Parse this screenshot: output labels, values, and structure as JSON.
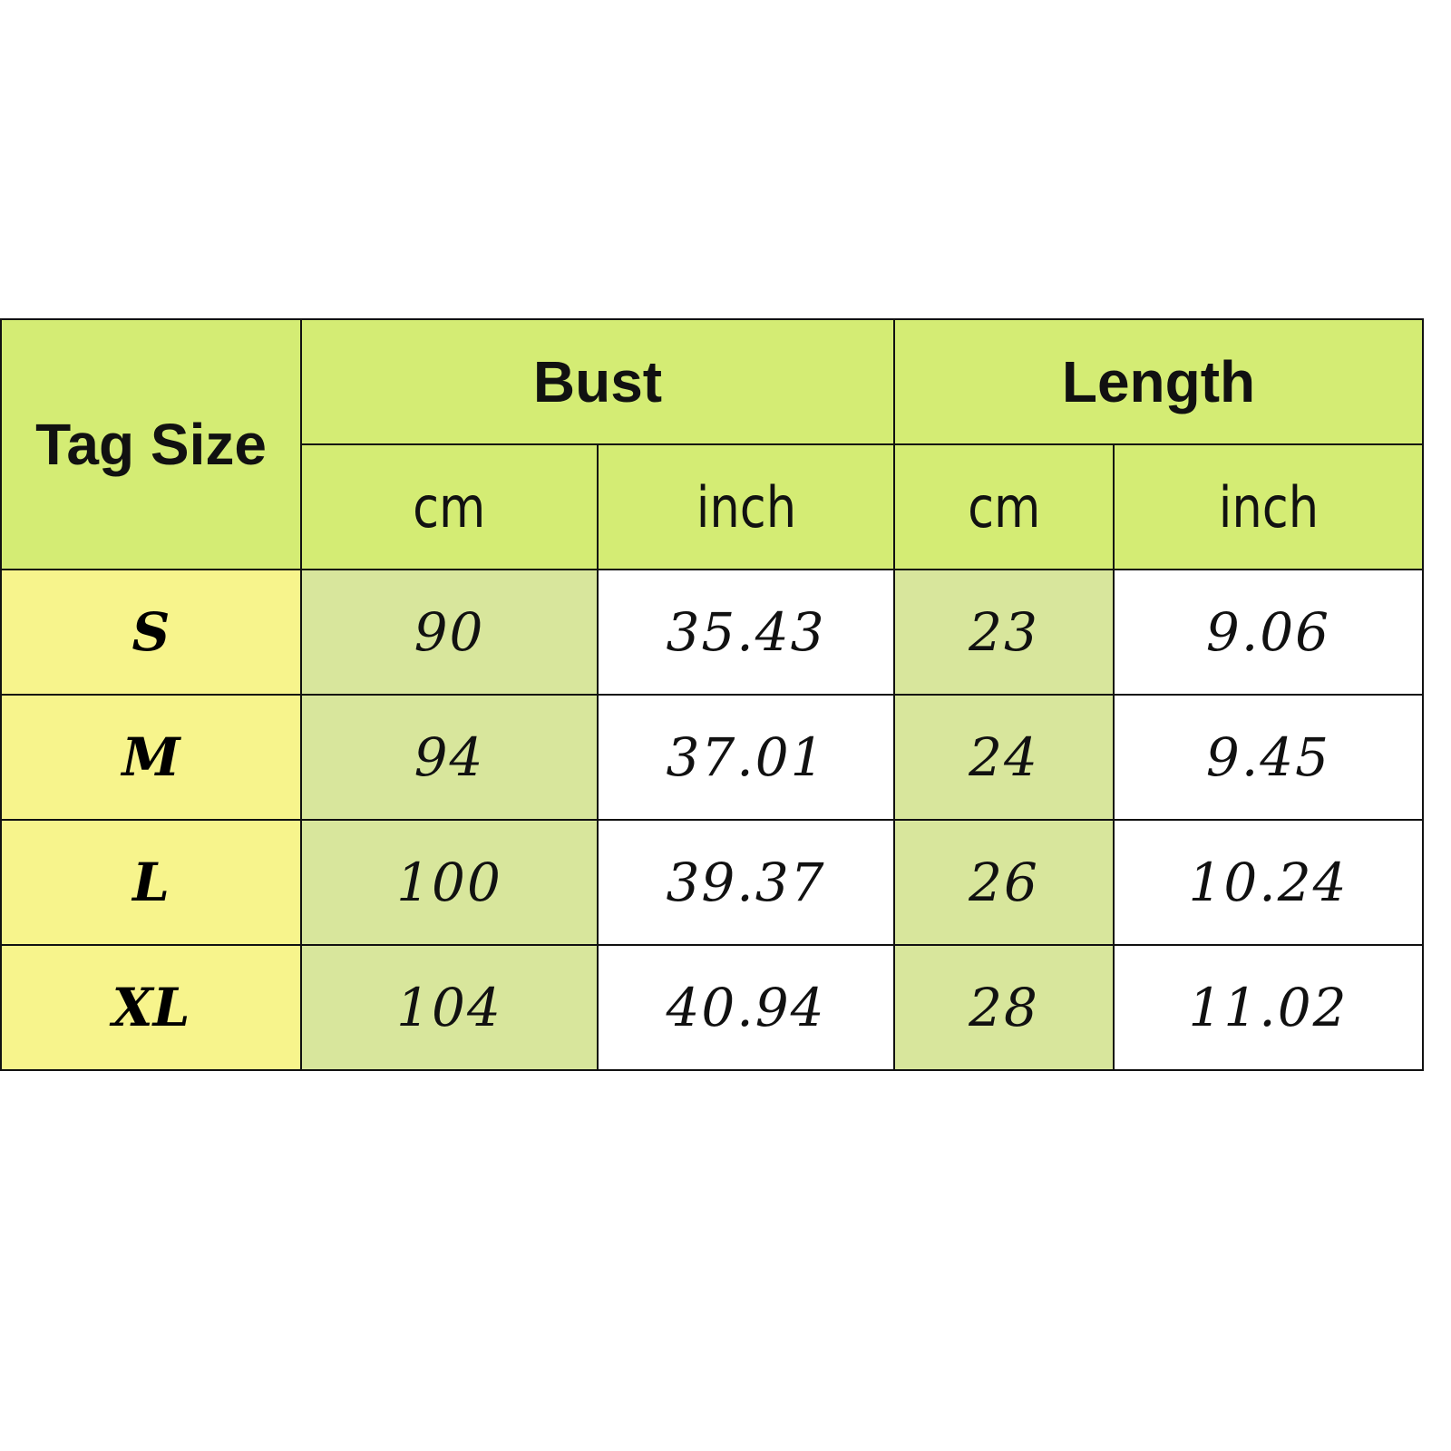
{
  "header": {
    "tag_size": "Tag Size",
    "bust": "Bust",
    "length": "Length",
    "units": [
      "cm",
      "inch",
      "cm",
      "inch"
    ]
  },
  "rows": [
    {
      "size": "S",
      "bust_cm": "90",
      "bust_inch": "35.43",
      "length_cm": "23",
      "length_inch": "9.06"
    },
    {
      "size": "M",
      "bust_cm": "94",
      "bust_inch": "37.01",
      "length_cm": "24",
      "length_inch": "9.45"
    },
    {
      "size": "L",
      "bust_cm": "100",
      "bust_inch": "39.37",
      "length_cm": "26",
      "length_inch": "10.24"
    },
    {
      "size": "XL",
      "bust_cm": "104",
      "bust_inch": "40.94",
      "length_cm": "28",
      "length_inch": "11.02"
    }
  ],
  "colors": {
    "header": "#d4ec74",
    "size_column": "#f7f48c",
    "cm_column": "#d8e69c",
    "inch_column": "#ffffff"
  }
}
